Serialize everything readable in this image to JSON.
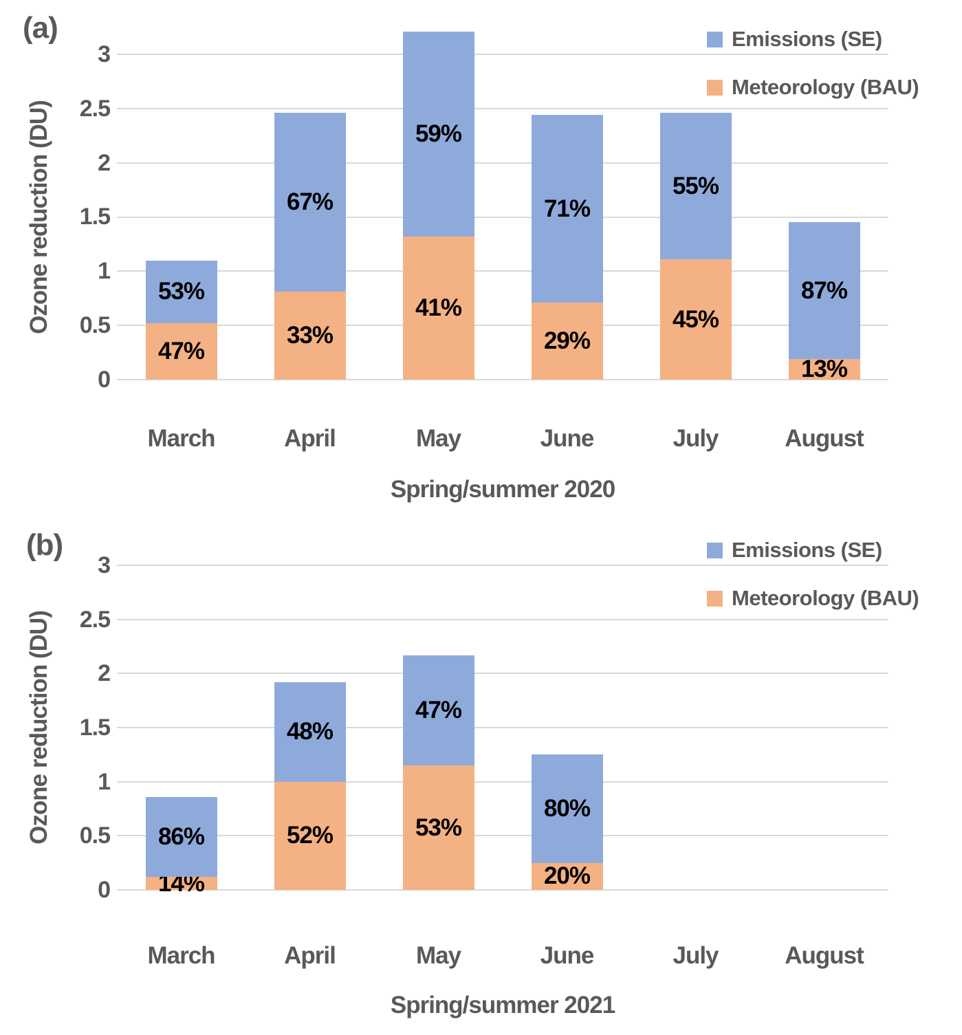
{
  "colors": {
    "emissions_blue": "#8EAADB",
    "meteorology_orange": "#F4B183",
    "gridline_gray": "#D9D9D9",
    "axis_text_gray": "#595959",
    "pct_label_black": "#000000"
  },
  "legend": [
    {
      "label": "Emissions (SE)",
      "color": "#8EAADB",
      "swatch": "blue-square-icon"
    },
    {
      "label": "Meteorology (BAU)",
      "color": "#F4B183",
      "swatch": "orange-square-icon"
    }
  ],
  "chart_data": [
    {
      "type": "bar",
      "stacked": true,
      "panel_label": "(a)",
      "title": "",
      "xlabel": "Spring/summer 2020",
      "ylabel": "Ozone reduction (DU)",
      "ylim": [
        0,
        3
      ],
      "grid": true,
      "legend_position": "top-right",
      "yticks": [
        {
          "value": 0,
          "label": "0"
        },
        {
          "value": 0.5,
          "label": "0.5"
        },
        {
          "value": 1,
          "label": "1"
        },
        {
          "value": 1.5,
          "label": "1.5"
        },
        {
          "value": 2,
          "label": "2"
        },
        {
          "value": 2.5,
          "label": "2.5"
        },
        {
          "value": 3,
          "label": "3"
        }
      ],
      "categories": [
        "March",
        "April",
        "May",
        "June",
        "July",
        "August"
      ],
      "series": [
        {
          "name": "Meteorology (BAU)",
          "color": "#F4B183",
          "values": [
            0.52,
            0.81,
            1.32,
            0.71,
            1.11,
            0.19
          ],
          "pct_labels": [
            "47%",
            "33%",
            "41%",
            "29%",
            "45%",
            "13%"
          ]
        },
        {
          "name": "Emissions (SE)",
          "color": "#8EAADB",
          "values": [
            0.58,
            1.65,
            1.89,
            1.73,
            1.35,
            1.26
          ],
          "pct_labels": [
            "53%",
            "67%",
            "59%",
            "71%",
            "55%",
            "87%"
          ]
        }
      ],
      "totals": [
        1.1,
        2.46,
        3.21,
        2.44,
        2.46,
        1.45
      ]
    },
    {
      "type": "bar",
      "stacked": true,
      "panel_label": "(b)",
      "title": "",
      "xlabel": "Spring/summer 2021",
      "ylabel": "Ozone reduction (DU)",
      "ylim": [
        0,
        3
      ],
      "grid": true,
      "legend_position": "top-right",
      "yticks": [
        {
          "value": 0,
          "label": "0"
        },
        {
          "value": 0.5,
          "label": "0.5"
        },
        {
          "value": 1,
          "label": "1"
        },
        {
          "value": 1.5,
          "label": "1.5"
        },
        {
          "value": 2,
          "label": "2"
        },
        {
          "value": 2.5,
          "label": "2.5"
        },
        {
          "value": 3,
          "label": "3"
        }
      ],
      "categories": [
        "March",
        "April",
        "May",
        "June",
        "July",
        "August"
      ],
      "series": [
        {
          "name": "Meteorology (BAU)",
          "color": "#F4B183",
          "values": [
            0.12,
            1.0,
            1.15,
            0.25,
            0,
            0
          ],
          "pct_labels": [
            "14%",
            "52%",
            "53%",
            "20%",
            "",
            ""
          ]
        },
        {
          "name": "Emissions (SE)",
          "color": "#8EAADB",
          "values": [
            0.74,
            0.92,
            1.02,
            1.0,
            0,
            0
          ],
          "pct_labels": [
            "86%",
            "48%",
            "47%",
            "80%",
            "",
            ""
          ]
        }
      ],
      "totals": [
        0.86,
        1.92,
        2.17,
        1.25,
        0,
        0
      ]
    }
  ]
}
